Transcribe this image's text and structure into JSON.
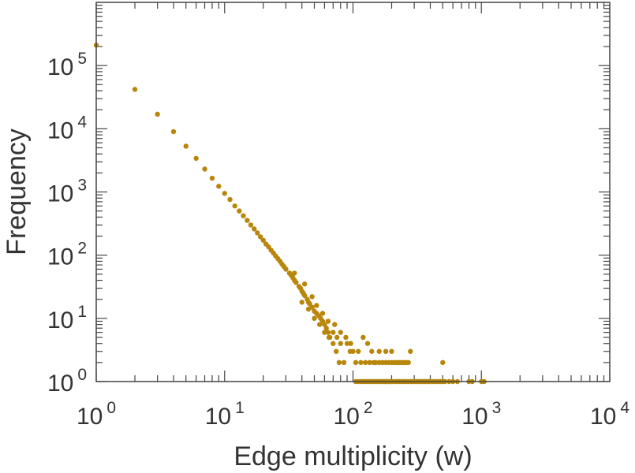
{
  "chart_data": {
    "type": "scatter",
    "title": "",
    "xlabel": "Edge multiplicity (w)",
    "ylabel": "Frequency",
    "xscale": "log",
    "yscale": "log",
    "xlim": [
      1,
      10000
    ],
    "ylim": [
      1,
      1000000
    ],
    "grid": false,
    "marker_color": "#b8860b",
    "x_ticks": [
      {
        "base": "10",
        "exp": "0",
        "value": 1
      },
      {
        "base": "10",
        "exp": "1",
        "value": 10
      },
      {
        "base": "10",
        "exp": "2",
        "value": 100
      },
      {
        "base": "10",
        "exp": "3",
        "value": 1000
      },
      {
        "base": "10",
        "exp": "4",
        "value": 10000
      }
    ],
    "y_ticks": [
      {
        "base": "10",
        "exp": "0",
        "value": 1
      },
      {
        "base": "10",
        "exp": "1",
        "value": 10
      },
      {
        "base": "10",
        "exp": "2",
        "value": 100
      },
      {
        "base": "10",
        "exp": "3",
        "value": 1000
      },
      {
        "base": "10",
        "exp": "4",
        "value": 10000
      },
      {
        "base": "10",
        "exp": "5",
        "value": 100000
      }
    ],
    "points": [
      [
        1,
        210000
      ],
      [
        2,
        42000
      ],
      [
        3,
        17000
      ],
      [
        4,
        9000
      ],
      [
        5,
        5300
      ],
      [
        6,
        3400
      ],
      [
        7,
        2300
      ],
      [
        8,
        1650
      ],
      [
        9,
        1230
      ],
      [
        10,
        950
      ],
      [
        11,
        760
      ],
      [
        12,
        600
      ],
      [
        13,
        500
      ],
      [
        14,
        420
      ],
      [
        15,
        355
      ],
      [
        16,
        300
      ],
      [
        17,
        260
      ],
      [
        18,
        225
      ],
      [
        19,
        195
      ],
      [
        20,
        172
      ],
      [
        21,
        150
      ],
      [
        22,
        135
      ],
      [
        23,
        120
      ],
      [
        24,
        108
      ],
      [
        25,
        97
      ],
      [
        26,
        88
      ],
      [
        27,
        80
      ],
      [
        28,
        72
      ],
      [
        29,
        66
      ],
      [
        30,
        60
      ],
      [
        32,
        52
      ],
      [
        33,
        48
      ],
      [
        34,
        44
      ],
      [
        35,
        40
      ],
      [
        36,
        37
      ],
      [
        38,
        32
      ],
      [
        39,
        30
      ],
      [
        40,
        27
      ],
      [
        41,
        25
      ],
      [
        42,
        23
      ],
      [
        44,
        20
      ],
      [
        45,
        18
      ],
      [
        46,
        17
      ],
      [
        48,
        15
      ],
      [
        50,
        13
      ],
      [
        52,
        12
      ],
      [
        54,
        11
      ],
      [
        56,
        10
      ],
      [
        58,
        9
      ],
      [
        60,
        8
      ],
      [
        62,
        7
      ],
      [
        64,
        6
      ],
      [
        66,
        5
      ],
      [
        70,
        4
      ],
      [
        74,
        3
      ],
      [
        78,
        2
      ],
      [
        85,
        2
      ],
      [
        40,
        18
      ],
      [
        45,
        14
      ],
      [
        50,
        10
      ],
      [
        55,
        8
      ],
      [
        60,
        6
      ],
      [
        65,
        5
      ],
      [
        70,
        6
      ],
      [
        75,
        5
      ],
      [
        80,
        4
      ],
      [
        90,
        4
      ],
      [
        95,
        3
      ],
      [
        100,
        3
      ],
      [
        110,
        3
      ],
      [
        120,
        5
      ],
      [
        130,
        4
      ],
      [
        140,
        3
      ],
      [
        160,
        3
      ],
      [
        180,
        3
      ],
      [
        200,
        3
      ],
      [
        35,
        52
      ],
      [
        42,
        35
      ],
      [
        48,
        22
      ],
      [
        52,
        16
      ],
      [
        58,
        12
      ],
      [
        64,
        9
      ],
      [
        72,
        8
      ],
      [
        80,
        6
      ],
      [
        88,
        5
      ],
      [
        96,
        4
      ],
      [
        105,
        2
      ],
      [
        115,
        2
      ],
      [
        125,
        2
      ],
      [
        135,
        2
      ],
      [
        145,
        2
      ],
      [
        150,
        2
      ],
      [
        160,
        2
      ],
      [
        170,
        2
      ],
      [
        180,
        2
      ],
      [
        190,
        2
      ],
      [
        200,
        2
      ],
      [
        210,
        2
      ],
      [
        220,
        2
      ],
      [
        230,
        2
      ],
      [
        240,
        2
      ],
      [
        250,
        2
      ],
      [
        260,
        2
      ],
      [
        270,
        2
      ],
      [
        280,
        3
      ],
      [
        500,
        2
      ],
      [
        105,
        1
      ],
      [
        110,
        1
      ],
      [
        115,
        1
      ],
      [
        120,
        1
      ],
      [
        125,
        1
      ],
      [
        130,
        1
      ],
      [
        135,
        1
      ],
      [
        140,
        1
      ],
      [
        145,
        1
      ],
      [
        150,
        1
      ],
      [
        155,
        1
      ],
      [
        160,
        1
      ],
      [
        165,
        1
      ],
      [
        170,
        1
      ],
      [
        175,
        1
      ],
      [
        180,
        1
      ],
      [
        185,
        1
      ],
      [
        190,
        1
      ],
      [
        195,
        1
      ],
      [
        200,
        1
      ],
      [
        210,
        1
      ],
      [
        220,
        1
      ],
      [
        230,
        1
      ],
      [
        240,
        1
      ],
      [
        250,
        1
      ],
      [
        260,
        1
      ],
      [
        270,
        1
      ],
      [
        280,
        1
      ],
      [
        290,
        1
      ],
      [
        300,
        1
      ],
      [
        310,
        1
      ],
      [
        320,
        1
      ],
      [
        330,
        1
      ],
      [
        340,
        1
      ],
      [
        350,
        1
      ],
      [
        360,
        1
      ],
      [
        370,
        1
      ],
      [
        380,
        1
      ],
      [
        390,
        1
      ],
      [
        400,
        1
      ],
      [
        420,
        1
      ],
      [
        440,
        1
      ],
      [
        460,
        1
      ],
      [
        480,
        1
      ],
      [
        500,
        1
      ],
      [
        520,
        1
      ],
      [
        560,
        1
      ],
      [
        600,
        1
      ],
      [
        650,
        1
      ],
      [
        800,
        1
      ],
      [
        850,
        1
      ],
      [
        1000,
        1
      ],
      [
        1050,
        1
      ]
    ]
  }
}
